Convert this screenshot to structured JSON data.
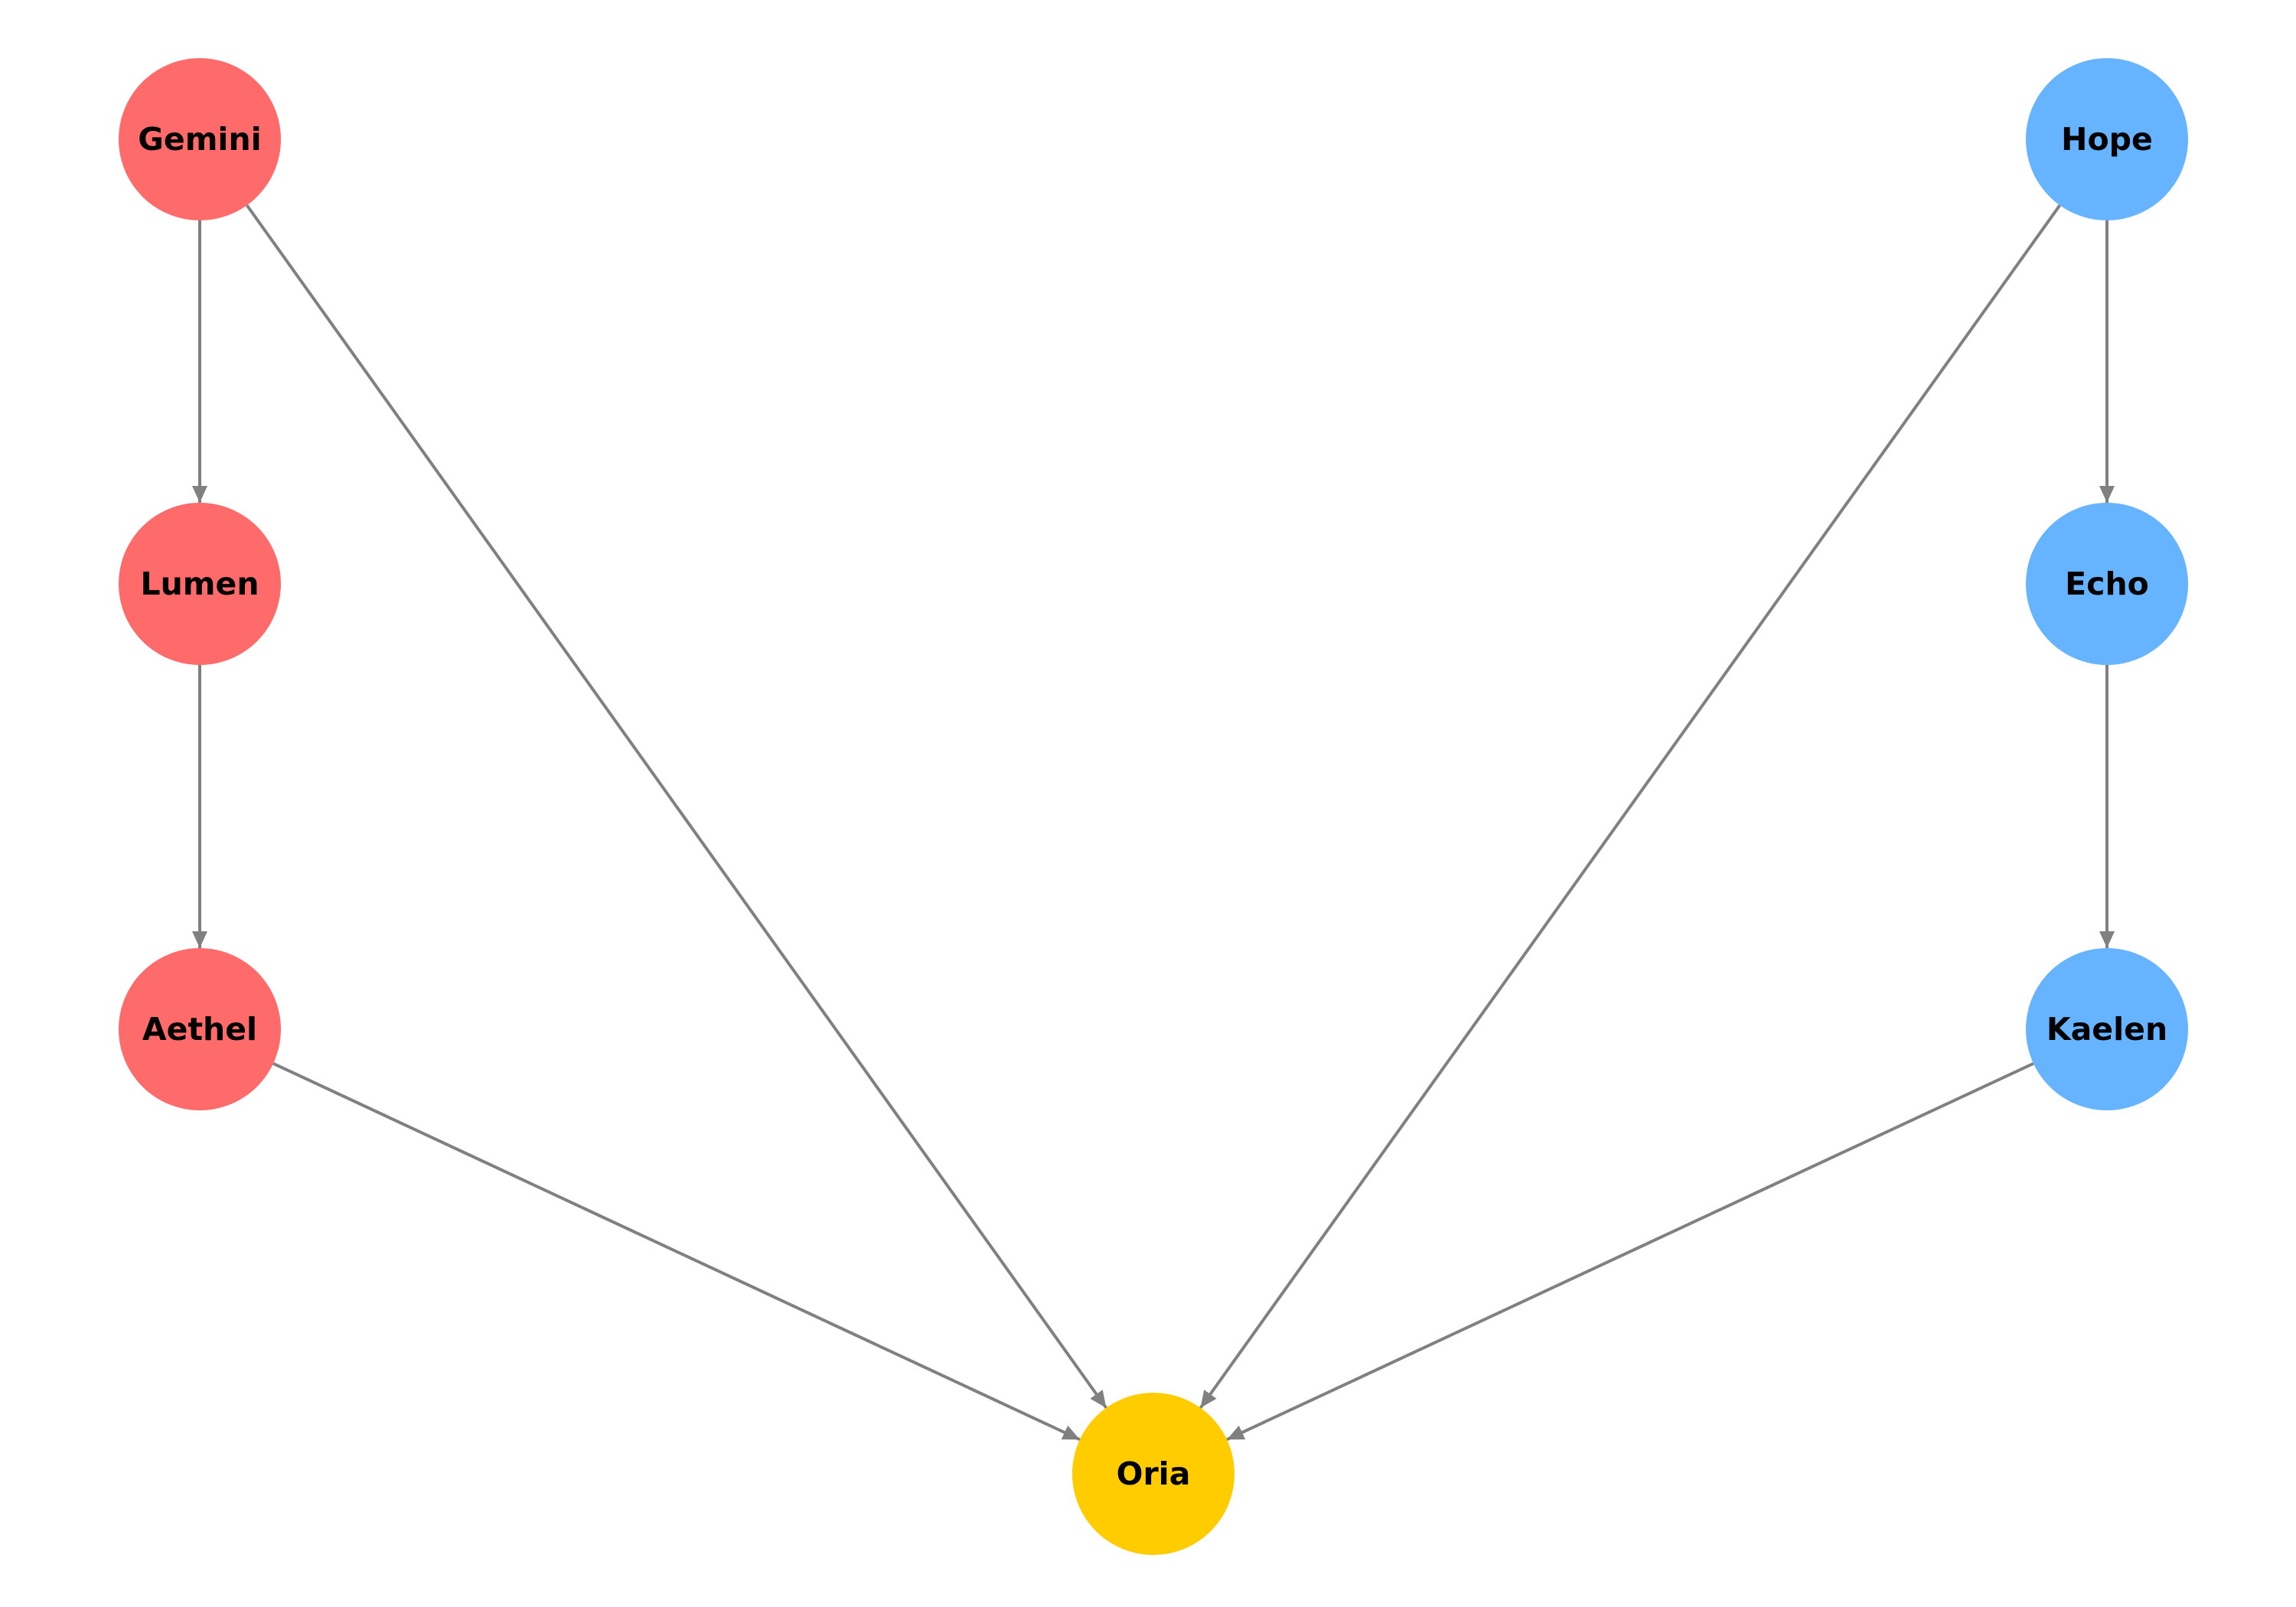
{
  "diagram": {
    "nodes": [
      {
        "id": "gemini",
        "label": "Gemini",
        "color": "#ff6b6b"
      },
      {
        "id": "lumen",
        "label": "Lumen",
        "color": "#ff6b6b"
      },
      {
        "id": "aethel",
        "label": "Aethel",
        "color": "#ff6b6b"
      },
      {
        "id": "hope",
        "label": "Hope",
        "color": "#66b3ff"
      },
      {
        "id": "echo",
        "label": "Echo",
        "color": "#66b3ff"
      },
      {
        "id": "kaelen",
        "label": "Kaelen",
        "color": "#66b3ff"
      },
      {
        "id": "oria",
        "label": "Oria",
        "color": "#ffcc00"
      }
    ],
    "edges": [
      {
        "from": "gemini",
        "to": "lumen"
      },
      {
        "from": "lumen",
        "to": "aethel"
      },
      {
        "from": "gemini",
        "to": "oria"
      },
      {
        "from": "aethel",
        "to": "oria"
      },
      {
        "from": "hope",
        "to": "echo"
      },
      {
        "from": "echo",
        "to": "kaelen"
      },
      {
        "from": "hope",
        "to": "oria"
      },
      {
        "from": "kaelen",
        "to": "oria"
      }
    ],
    "edge_color": "#808080"
  }
}
